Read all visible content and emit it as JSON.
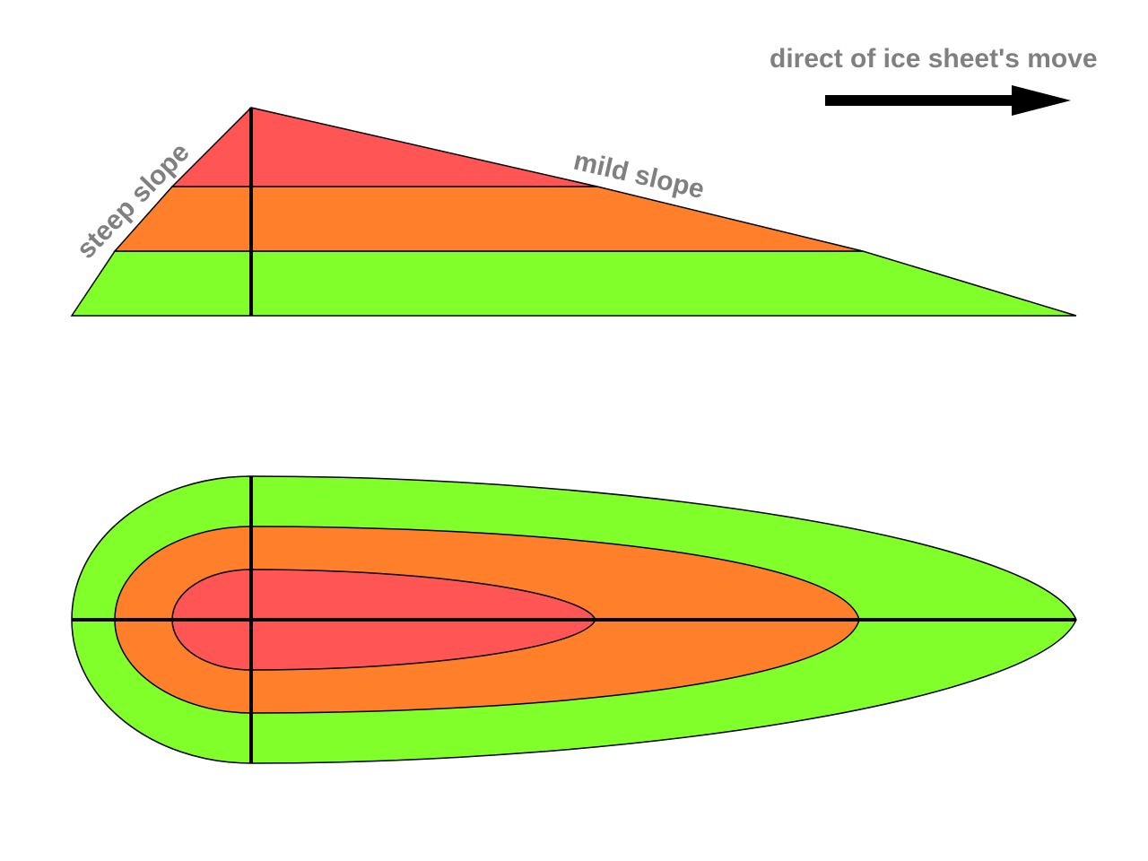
{
  "labels": {
    "direction": "direct of ice sheet's move",
    "steep": "steep slope",
    "mild": "mild slope"
  },
  "colors": {
    "top_zone": "#ff5555",
    "middle_zone": "#ff7f2a",
    "bottom_zone": "#80ff2a",
    "outline": "#000000",
    "text": "#808080"
  },
  "icons": {
    "direction_arrow": "arrow-right-icon"
  }
}
